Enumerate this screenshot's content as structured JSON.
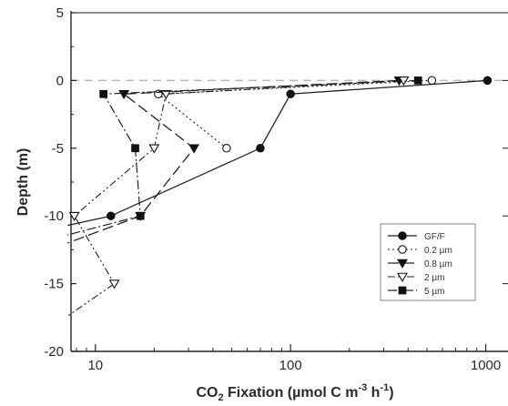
{
  "chart_data": {
    "type": "line",
    "xscale": "log",
    "xlim": [
      7.5,
      1300
    ],
    "ylim": [
      -20,
      5
    ],
    "xlabel": "CO2 Fixation (µmol C m-3 h-1)",
    "xlabel_parts": {
      "pre": "CO",
      "sub": "2",
      "mid": " Fixation (µmol C m",
      "sup1": "-3",
      "mid2": " h",
      "sup2": "-1",
      "post": ")"
    },
    "ylabel": "Depth (m)",
    "x_ticks": [
      10,
      100,
      1000
    ],
    "x_tick_labels": [
      "10",
      "100",
      "1000"
    ],
    "y_ticks": [
      5,
      0,
      -5,
      -10,
      -15,
      -20
    ],
    "y_tick_labels": [
      "5",
      "0",
      "-5",
      "-10",
      "-15",
      "-20"
    ],
    "zero_line": true,
    "grid": false,
    "legend_position": "right",
    "series": [
      {
        "name": "GF/F",
        "marker": "filled-circle",
        "line": "solid",
        "points": [
          [
            1020,
            0
          ],
          [
            100,
            -1
          ],
          [
            70,
            -5
          ],
          [
            12,
            -10
          ]
        ],
        "tail": [
          7.2,
          -10.7
        ]
      },
      {
        "name": "0.2 µm",
        "marker": "open-circle",
        "line": "dotted",
        "points": [
          [
            530,
            0
          ],
          [
            21,
            -1
          ],
          [
            47,
            -5
          ]
        ]
      },
      {
        "name": "0.8 µm",
        "marker": "filled-triangle",
        "line": "long-dash",
        "points": [
          [
            360,
            0
          ],
          [
            14,
            -1
          ],
          [
            32,
            -5
          ],
          [
            17,
            -10
          ]
        ],
        "tail": [
          7.2,
          -12
        ]
      },
      {
        "name": "2 µm",
        "marker": "open-triangle",
        "line": "dash-dot-dot",
        "points": [
          [
            380,
            0
          ],
          [
            23,
            -1
          ],
          [
            20,
            -5
          ],
          [
            7.8,
            -10
          ],
          [
            12.5,
            -15
          ]
        ],
        "tail": [
          7.2,
          -17.4
        ]
      },
      {
        "name": "5 µm",
        "marker": "filled-square",
        "line": "dash-dot",
        "points": [
          [
            450,
            0
          ],
          [
            11,
            -1
          ],
          [
            16,
            -5
          ],
          [
            17,
            -10
          ]
        ],
        "tail": [
          7.2,
          -11.4
        ]
      }
    ]
  }
}
